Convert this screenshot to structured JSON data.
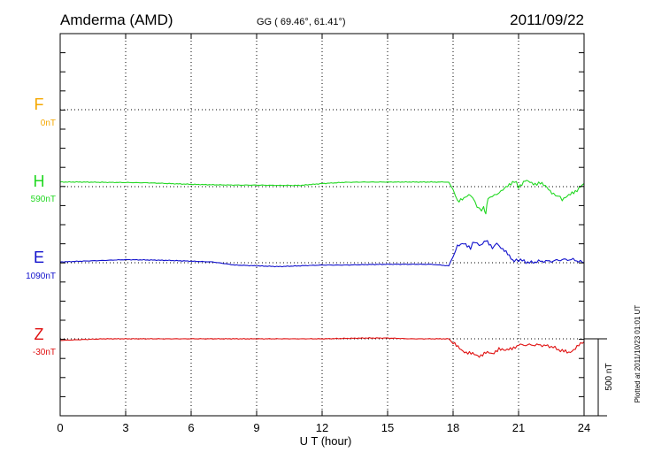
{
  "header": {
    "station": "Amderma (AMD)",
    "coords": "GG ( 69.46°,  61.41°)",
    "date": "2011/09/22"
  },
  "side_note": "Plotted at 2011/10/23 01:01 UT",
  "colors": {
    "F": "#f5a800",
    "H": "#22d822",
    "E": "#1010cc",
    "Z": "#e01010",
    "frame": "#000000",
    "grid": "#000000"
  },
  "chart_data": {
    "type": "line",
    "title": "Amderma (AMD)",
    "xlabel": "U T (hour)",
    "xlim": [
      0,
      24
    ],
    "x_ticks": [
      0,
      3,
      6,
      9,
      12,
      15,
      18,
      21,
      24
    ],
    "grid": true,
    "scale_bar": {
      "label": "500 nT",
      "value_nT": 500
    },
    "units": "nT",
    "series": [
      {
        "name": "F",
        "baseline_label": "0nT",
        "values": []
      },
      {
        "name": "H",
        "baseline_label": "590nT",
        "x": [
          0,
          1,
          2,
          3,
          4,
          5,
          6,
          7,
          8,
          9,
          10,
          11,
          12,
          13,
          14,
          15,
          16,
          17,
          17.8,
          18.0,
          18.2,
          18.5,
          18.8,
          19.0,
          19.2,
          19.4,
          19.5,
          19.6,
          19.8,
          20.0,
          20.2,
          20.5,
          20.8,
          21.0,
          21.3,
          21.6,
          22.0,
          22.3,
          22.6,
          22.8,
          23.0,
          23.3,
          23.6,
          24.0
        ],
        "values": [
          30,
          30,
          28,
          27,
          25,
          20,
          15,
          12,
          10,
          10,
          8,
          8,
          20,
          28,
          30,
          30,
          30,
          30,
          30,
          -20,
          -90,
          -80,
          -50,
          -100,
          -150,
          -140,
          -170,
          -80,
          -60,
          -50,
          -30,
          0,
          40,
          0,
          40,
          20,
          20,
          0,
          -50,
          -60,
          -80,
          -60,
          -30,
          20
        ]
      },
      {
        "name": "E",
        "baseline_label": "1090nT",
        "x": [
          0,
          1,
          2,
          3,
          4,
          5,
          6,
          7,
          8,
          9,
          10,
          11,
          12,
          13,
          14,
          15,
          16,
          17,
          17.8,
          18.0,
          18.2,
          18.5,
          18.8,
          19.0,
          19.2,
          19.5,
          19.8,
          20.0,
          20.2,
          20.5,
          20.8,
          21.0,
          21.5,
          22.0,
          22.5,
          23.0,
          23.5,
          24.0
        ],
        "values": [
          5,
          10,
          15,
          20,
          18,
          15,
          10,
          5,
          -15,
          -20,
          -25,
          -20,
          -15,
          -15,
          -12,
          -10,
          -10,
          -10,
          -20,
          40,
          110,
          120,
          100,
          140,
          110,
          150,
          90,
          130,
          90,
          60,
          10,
          20,
          0,
          10,
          10,
          20,
          20,
          0
        ]
      },
      {
        "name": "Z",
        "baseline_label": "-30nT",
        "x": [
          0,
          2,
          4,
          6,
          8,
          10,
          12,
          14,
          15,
          16,
          17,
          17.8,
          18.0,
          18.3,
          18.6,
          18.9,
          19.2,
          19.5,
          19.8,
          20.1,
          20.4,
          20.7,
          21.0,
          21.5,
          22.0,
          22.5,
          23.0,
          23.3,
          23.6,
          24.0
        ],
        "values": [
          -10,
          0,
          0,
          0,
          0,
          0,
          0,
          5,
          5,
          0,
          0,
          0,
          -30,
          -60,
          -90,
          -100,
          -110,
          -90,
          -100,
          -60,
          -80,
          -60,
          -40,
          -40,
          -40,
          -50,
          -80,
          -90,
          -60,
          -20
        ]
      }
    ]
  }
}
